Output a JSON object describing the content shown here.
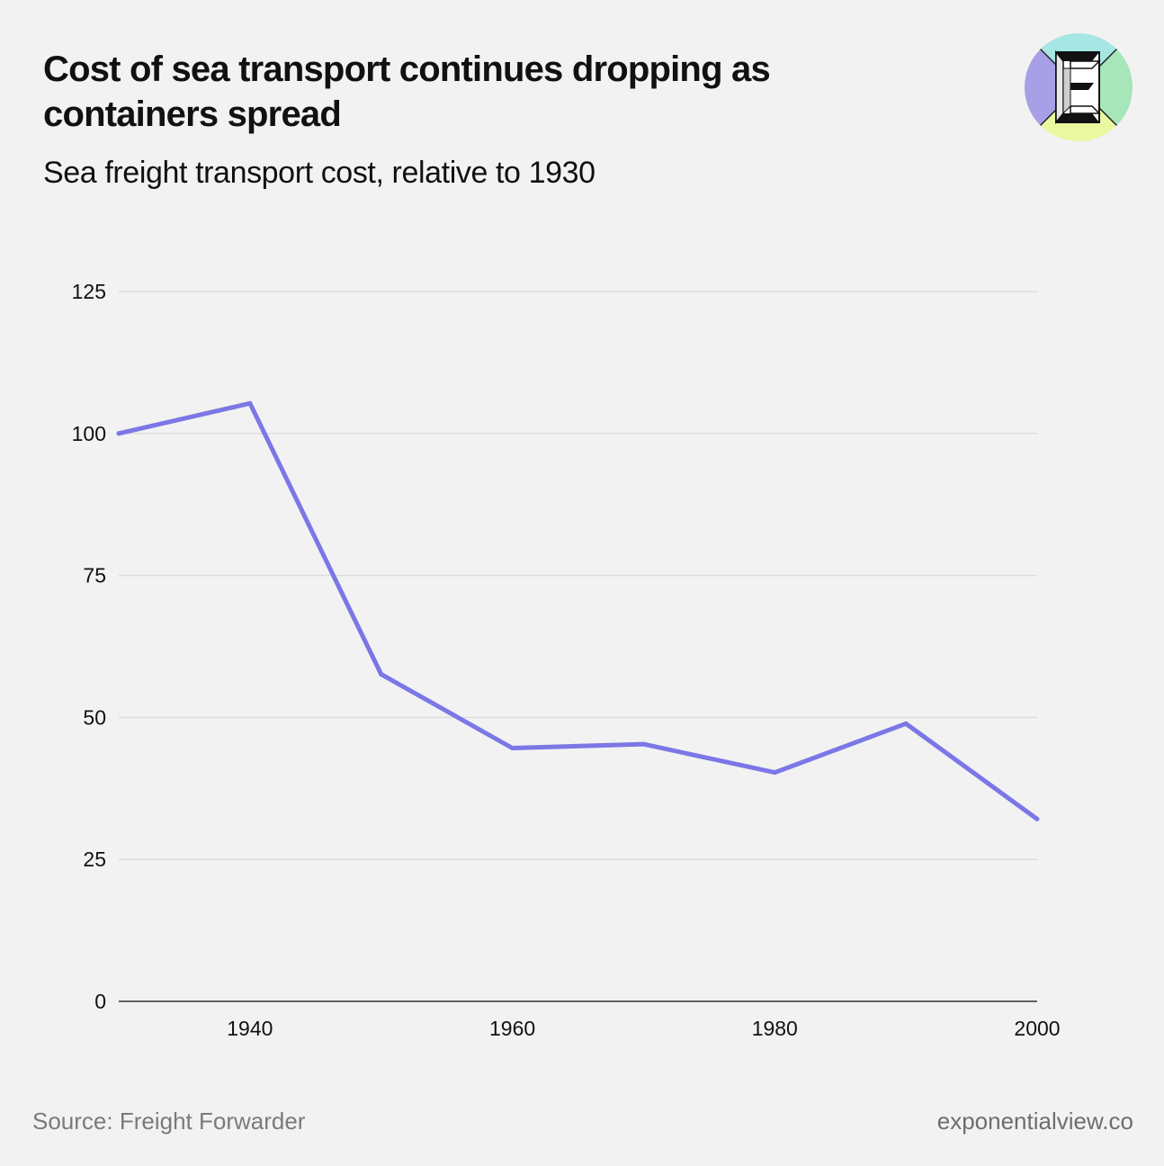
{
  "header": {
    "title": "Cost of sea transport continues dropping as containers spread",
    "subtitle": "Sea freight transport cost, relative to 1930"
  },
  "logo": {
    "icon": "exponential-view-logo-icon",
    "letter": "E"
  },
  "footer": {
    "source": "Source: Freight Forwarder",
    "site": "exponentialview.co"
  },
  "colors": {
    "line": "#7b77e6",
    "grid": "#dddddd",
    "axis": "#333333",
    "background": "#f2f2f2"
  },
  "chart_data": {
    "type": "line",
    "title": "Cost of sea transport continues dropping as containers spread",
    "subtitle": "Sea freight transport cost, relative to 1930",
    "xlabel": "",
    "ylabel": "",
    "xlim": [
      1930,
      2000
    ],
    "ylim": [
      0,
      125
    ],
    "xticks": [
      1940,
      1960,
      1980,
      2000
    ],
    "yticks": [
      0,
      25,
      50,
      75,
      100,
      125
    ],
    "grid": true,
    "series": [
      {
        "name": "Sea freight transport cost",
        "x": [
          1930,
          1940,
          1950,
          1960,
          1970,
          1980,
          1990,
          2000
        ],
        "y": [
          100,
          105.3,
          57.6,
          44.6,
          45.3,
          40.3,
          48.9,
          32.1
        ]
      }
    ]
  }
}
